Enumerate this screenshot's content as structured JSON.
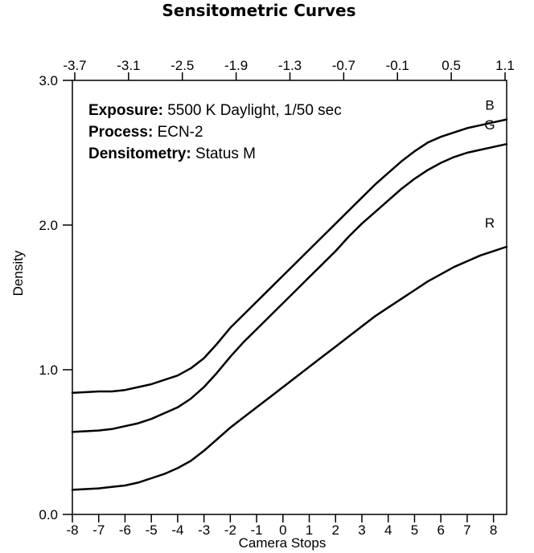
{
  "chart_data": {
    "type": "line",
    "title": "Sensitometric Curves",
    "xlabel": "Camera Stops",
    "ylabel": "Density",
    "xlim": [
      -8,
      8.5
    ],
    "ylim": [
      0,
      3
    ],
    "x_ticks": [
      "-8",
      "-7",
      "-6",
      "-5",
      "-4",
      "-3",
      "-2",
      "-1",
      "0",
      "1",
      "2",
      "3",
      "4",
      "5",
      "6",
      "7",
      "8"
    ],
    "x_tick_values": [
      -8,
      -7,
      -6,
      -5,
      -4,
      -3,
      -2,
      -1,
      0,
      1,
      2,
      3,
      4,
      5,
      6,
      7,
      8
    ],
    "top_axis_ticks": [
      "-3.7",
      "-3.1",
      "-2.5",
      "-1.9",
      "-1.3",
      "-0.7",
      "-0.1",
      "0.5",
      "1.1"
    ],
    "y_ticks": [
      "0.0",
      "1.0",
      "2.0",
      "3.0"
    ],
    "y_tick_values": [
      0,
      1,
      2,
      3
    ],
    "annotations": [
      {
        "key": "Exposure:",
        "value": "5500 K Daylight, 1/50 sec"
      },
      {
        "key": "Process:",
        "value": "ECN-2"
      },
      {
        "key": "Densitometry:",
        "value": "Status M"
      }
    ],
    "series": [
      {
        "name": "B",
        "color": "#000000",
        "x": [
          -8,
          -7.5,
          -7,
          -6.5,
          -6,
          -5.5,
          -5,
          -4.5,
          -4,
          -3.5,
          -3,
          -2.5,
          -2,
          -1.5,
          -1,
          -0.5,
          0,
          0.5,
          1,
          1.5,
          2,
          2.5,
          3,
          3.5,
          4,
          4.5,
          5,
          5.5,
          6,
          6.5,
          7,
          7.5,
          8,
          8.5
        ],
        "values": [
          0.84,
          0.845,
          0.85,
          0.85,
          0.86,
          0.88,
          0.9,
          0.93,
          0.96,
          1.01,
          1.08,
          1.18,
          1.29,
          1.38,
          1.47,
          1.56,
          1.65,
          1.74,
          1.83,
          1.92,
          2.01,
          2.1,
          2.19,
          2.28,
          2.36,
          2.44,
          2.51,
          2.57,
          2.61,
          2.64,
          2.67,
          2.69,
          2.71,
          2.73
        ]
      },
      {
        "name": "G",
        "color": "#000000",
        "x": [
          -8,
          -7.5,
          -7,
          -6.5,
          -6,
          -5.5,
          -5,
          -4.5,
          -4,
          -3.5,
          -3,
          -2.5,
          -2,
          -1.5,
          -1,
          -0.5,
          0,
          0.5,
          1,
          1.5,
          2,
          2.5,
          3,
          3.5,
          4,
          4.5,
          5,
          5.5,
          6,
          6.5,
          7,
          7.5,
          8,
          8.5
        ],
        "values": [
          0.57,
          0.575,
          0.58,
          0.59,
          0.61,
          0.63,
          0.66,
          0.7,
          0.74,
          0.8,
          0.88,
          0.98,
          1.09,
          1.19,
          1.28,
          1.37,
          1.46,
          1.55,
          1.64,
          1.73,
          1.82,
          1.92,
          2.01,
          2.09,
          2.17,
          2.25,
          2.32,
          2.38,
          2.43,
          2.47,
          2.5,
          2.52,
          2.54,
          2.56
        ]
      },
      {
        "name": "R",
        "color": "#000000",
        "x": [
          -8,
          -7.5,
          -7,
          -6.5,
          -6,
          -5.5,
          -5,
          -4.5,
          -4,
          -3.5,
          -3,
          -2.5,
          -2,
          -1.5,
          -1,
          -0.5,
          0,
          0.5,
          1,
          1.5,
          2,
          2.5,
          3,
          3.5,
          4,
          4.5,
          5,
          5.5,
          6,
          6.5,
          7,
          7.5,
          8,
          8.5
        ],
        "values": [
          0.17,
          0.175,
          0.18,
          0.19,
          0.2,
          0.22,
          0.25,
          0.28,
          0.32,
          0.37,
          0.44,
          0.52,
          0.6,
          0.67,
          0.74,
          0.81,
          0.88,
          0.95,
          1.02,
          1.09,
          1.16,
          1.23,
          1.3,
          1.37,
          1.43,
          1.49,
          1.55,
          1.61,
          1.66,
          1.71,
          1.75,
          1.79,
          1.82,
          1.85
        ]
      }
    ],
    "grid": false,
    "legend": "inline-right"
  }
}
